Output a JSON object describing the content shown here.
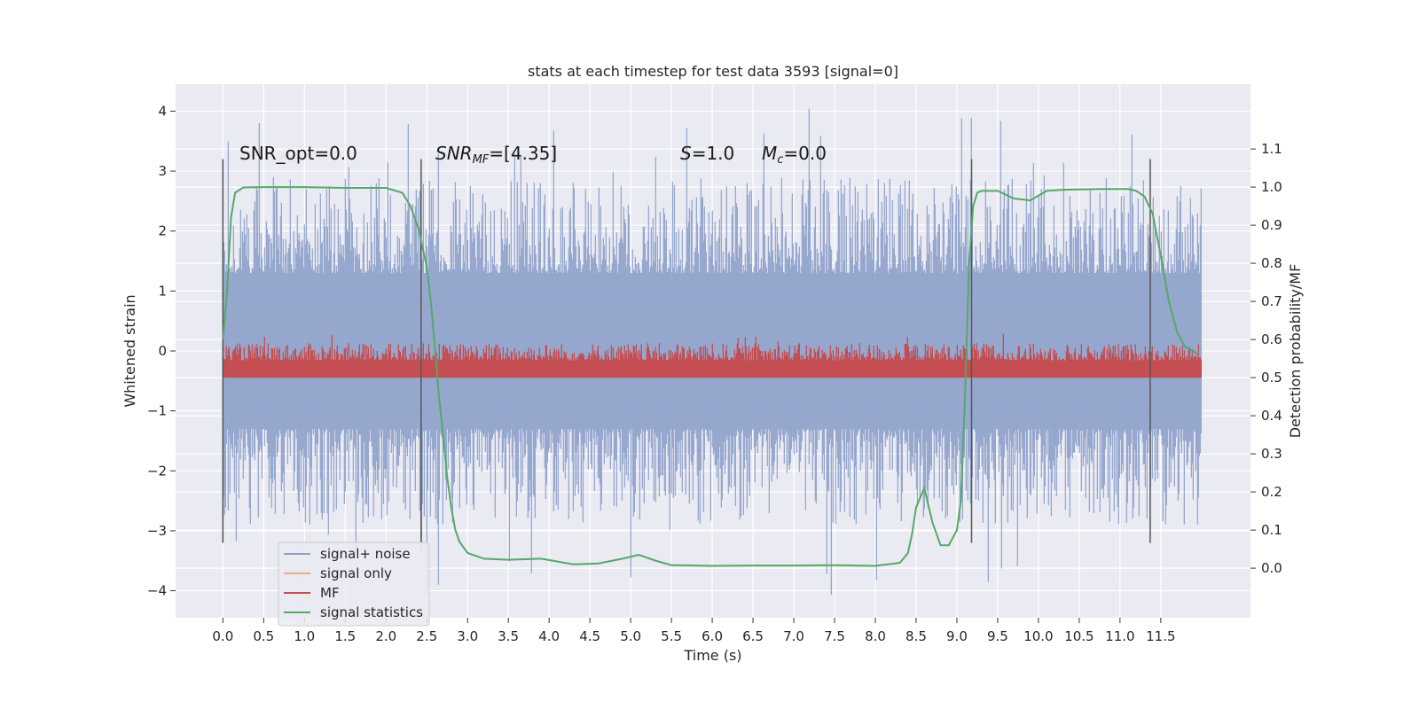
{
  "figure": {
    "title": "stats at each timestep for test data 3593 [signal=0]",
    "annotations": [
      {
        "id": "snr-opt",
        "text": "SNR_opt=0.0"
      },
      {
        "id": "snr-mf",
        "base": "SNR",
        "sub": "MF",
        "rest": "=[4.35]"
      },
      {
        "id": "s",
        "base": "S",
        "rest": "=1.0"
      },
      {
        "id": "mc",
        "base": "M",
        "sub": "c",
        "rest": "=0.0"
      }
    ]
  },
  "chart_data": {
    "type": "line",
    "title": "stats at each timestep for test data 3593 [signal=0]",
    "xlabel": "Time (s)",
    "ylabel": "Whitened strain",
    "y2label": "Detection probability/MF",
    "xlim": [
      -0.58,
      12.6
    ],
    "ylim": [
      -4.45,
      4.45
    ],
    "y2lim": [
      -0.13,
      1.27
    ],
    "xticks": [
      0.0,
      0.5,
      1.0,
      1.5,
      2.0,
      2.5,
      3.0,
      3.5,
      4.0,
      4.5,
      5.0,
      5.5,
      6.0,
      6.5,
      7.0,
      7.5,
      8.0,
      8.5,
      9.0,
      9.5,
      10.0,
      10.5,
      11.0,
      11.5
    ],
    "xtick_labels": [
      "0.0",
      "0.5",
      "1.0",
      "1.5",
      "2.0",
      "2.5",
      "3.0",
      "3.5",
      "4.0",
      "4.5",
      "5.0",
      "5.5",
      "6.0",
      "6.5",
      "7.0",
      "7.5",
      "8.0",
      "8.5",
      "9.0",
      "9.5",
      "10.0",
      "10.5",
      "11.0",
      "11.5"
    ],
    "yticks": [
      -4,
      -3,
      -2,
      -1,
      0,
      1,
      2,
      3,
      4
    ],
    "ytick_labels": [
      "−4",
      "−3",
      "−2",
      "−1",
      "0",
      "1",
      "2",
      "3",
      "4"
    ],
    "y2ticks": [
      0.0,
      0.1,
      0.2,
      0.3,
      0.4,
      0.5,
      0.6,
      0.7,
      0.8,
      0.9,
      1.0,
      1.1
    ],
    "y2tick_labels": [
      "0.0",
      "0.1",
      "0.2",
      "0.3",
      "0.4",
      "0.5",
      "0.6",
      "0.7",
      "0.8",
      "0.9",
      "1.0",
      "1.1"
    ],
    "grid": true,
    "legend_position": "lower-left",
    "legend": [
      "signal+ noise",
      "signal only",
      "MF",
      "signal statistics"
    ],
    "series": [
      {
        "name": "signal+ noise",
        "color": "#8da0cb",
        "x_range": [
          0.0,
          12.0
        ],
        "envelope": {
          "typical_max": 2.3,
          "typical_min": -2.3,
          "peak_max": 4.05,
          "peak_min": -4.1
        }
      },
      {
        "name": "signal only",
        "color": "#e8a98c",
        "values": [
          0.0
        ]
      },
      {
        "name": "MF",
        "color": "#c44e52",
        "axis": "right",
        "x_range": [
          0.0,
          12.0
        ],
        "envelope": {
          "base": 0.5,
          "typical_max": 0.58,
          "peak_max": 0.62
        }
      },
      {
        "name": "signal statistics",
        "color": "#55a868",
        "axis": "right",
        "x": [
          0.0,
          0.05,
          0.1,
          0.15,
          0.25,
          0.5,
          1.0,
          1.5,
          2.0,
          2.2,
          2.3,
          2.4,
          2.5,
          2.55,
          2.6,
          2.65,
          2.7,
          2.75,
          2.8,
          2.85,
          2.9,
          3.0,
          3.2,
          3.5,
          3.9,
          4.3,
          4.6,
          4.9,
          5.1,
          5.3,
          5.5,
          6.0,
          6.5,
          7.0,
          7.5,
          8.0,
          8.3,
          8.4,
          8.45,
          8.5,
          8.6,
          8.7,
          8.8,
          8.9,
          9.0,
          9.05,
          9.1,
          9.15,
          9.2,
          9.25,
          9.3,
          9.5,
          9.7,
          9.9,
          10.1,
          10.3,
          10.8,
          11.1,
          11.2,
          11.3,
          11.4,
          11.5,
          11.6,
          11.7,
          11.8,
          11.9,
          11.95
        ],
        "y": [
          0.6,
          0.72,
          0.92,
          0.985,
          0.999,
          1.0,
          1.0,
          0.998,
          0.998,
          0.985,
          0.95,
          0.89,
          0.79,
          0.7,
          0.58,
          0.45,
          0.35,
          0.24,
          0.16,
          0.1,
          0.07,
          0.04,
          0.025,
          0.022,
          0.025,
          0.01,
          0.012,
          0.025,
          0.035,
          0.02,
          0.008,
          0.006,
          0.007,
          0.007,
          0.008,
          0.006,
          0.014,
          0.04,
          0.09,
          0.16,
          0.21,
          0.12,
          0.06,
          0.06,
          0.1,
          0.18,
          0.45,
          0.8,
          0.95,
          0.985,
          0.99,
          0.99,
          0.97,
          0.965,
          0.99,
          0.993,
          0.995,
          0.995,
          0.99,
          0.975,
          0.93,
          0.82,
          0.7,
          0.62,
          0.58,
          0.57,
          0.56
        ]
      }
    ],
    "vertical_markers": [
      {
        "x": 0.0,
        "ymin": -3.2,
        "ymax": 3.2
      },
      {
        "x": 2.43,
        "ymin": -3.2,
        "ymax": 3.2
      },
      {
        "x": 9.18,
        "ymin": -3.2,
        "ymax": 3.2
      },
      {
        "x": 11.37,
        "ymin": -3.2,
        "ymax": 3.2
      }
    ],
    "colors": {
      "plot_bg": "#eaeaf2",
      "grid": "#ffffff",
      "marker_line": "#555555"
    }
  }
}
